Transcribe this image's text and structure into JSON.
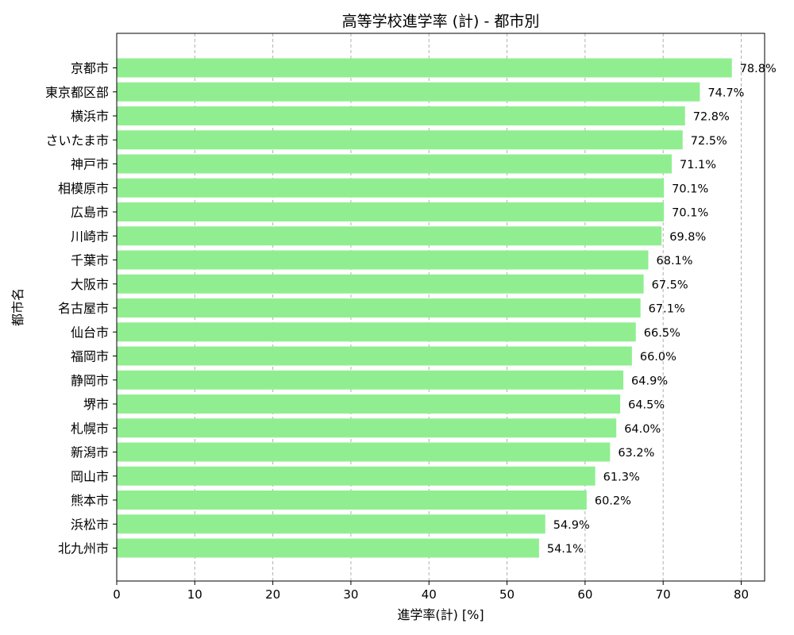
{
  "chart_data": {
    "type": "bar",
    "orientation": "horizontal",
    "title": "高等学校進学率 (計) - 都市別",
    "xlabel": "進学率(計) [%]",
    "ylabel": "都市名",
    "xlim": [
      0,
      83
    ],
    "xticks": [
      0,
      10,
      20,
      30,
      40,
      50,
      60,
      70,
      80
    ],
    "grid": "vertical dashed",
    "bar_color": "#90ee90",
    "categories": [
      "京都市",
      "東京都区部",
      "横浜市",
      "さいたま市",
      "神戸市",
      "相模原市",
      "広島市",
      "川崎市",
      "千葉市",
      "大阪市",
      "名古屋市",
      "仙台市",
      "福岡市",
      "静岡市",
      "堺市",
      "札幌市",
      "新潟市",
      "岡山市",
      "熊本市",
      "浜松市",
      "北九州市"
    ],
    "values": [
      78.8,
      74.7,
      72.8,
      72.5,
      71.1,
      70.1,
      70.1,
      69.8,
      68.1,
      67.5,
      67.1,
      66.5,
      66.0,
      64.9,
      64.5,
      64.0,
      63.2,
      61.3,
      60.2,
      54.9,
      54.1
    ],
    "data_labels": [
      "78.8%",
      "74.7%",
      "72.8%",
      "72.5%",
      "71.1%",
      "70.1%",
      "70.1%",
      "69.8%",
      "68.1%",
      "67.5%",
      "67.1%",
      "66.5%",
      "66.0%",
      "64.9%",
      "64.5%",
      "64.0%",
      "63.2%",
      "61.3%",
      "60.2%",
      "54.9%",
      "54.1%"
    ]
  }
}
